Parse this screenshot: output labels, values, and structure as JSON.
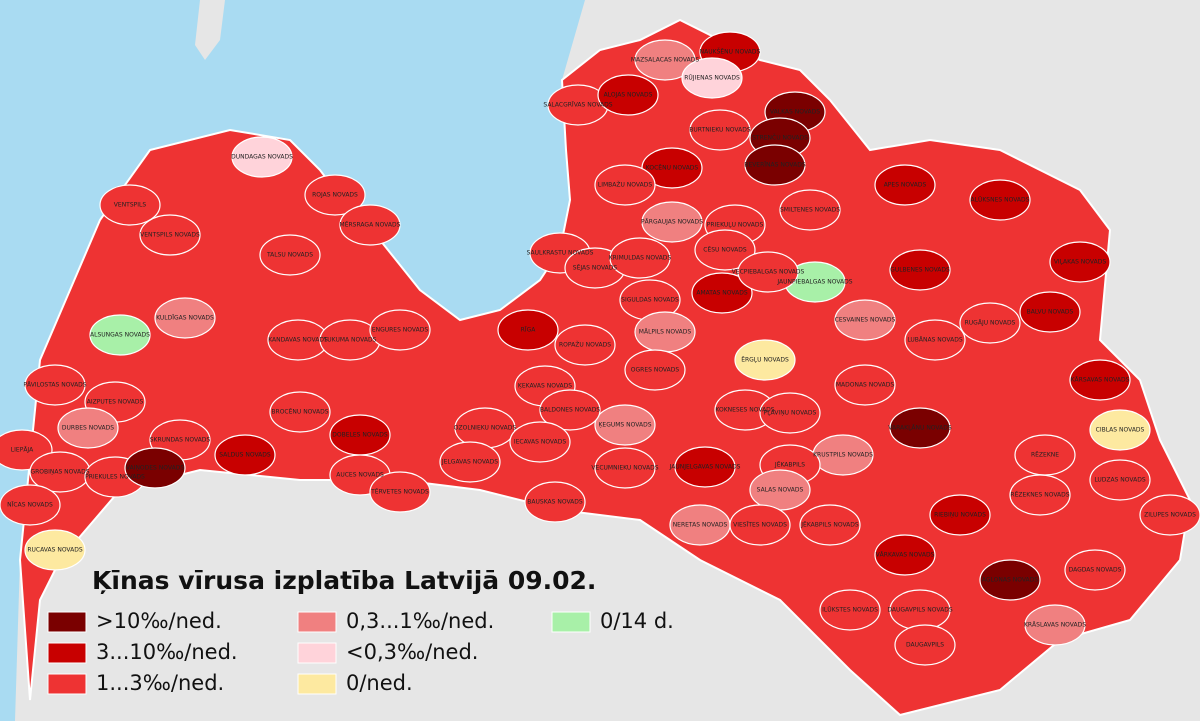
{
  "map": {
    "title": "Ķīnas vīrusa izplatība Latvijā 09.02.",
    "legend": [
      {
        "label": ">10‰/ned.",
        "color": "#7a0000"
      },
      {
        "label": "3...10‰/ned.",
        "color": "#c80000"
      },
      {
        "label": "1...3‰/ned.",
        "color": "#ee3333"
      },
      {
        "label": "0,3...1‰/ned.",
        "color": "#f08080"
      },
      {
        "label": "<0,3‰/ned.",
        "color": "#ffd3da"
      },
      {
        "label": "0/ned.",
        "color": "#fde9a0"
      },
      {
        "label": "0/14 d.",
        "color": "#a8f0a8"
      }
    ],
    "regions": [
      {
        "name": "MAZSALACAS NOVADS",
        "color": "#f08080"
      },
      {
        "name": "NAUKŠĒNU NOVADS",
        "color": "#c80000"
      },
      {
        "name": "RŪJIENAS NOVADS",
        "color": "#ffd3da"
      },
      {
        "name": "VALKAS NOVADS",
        "color": "#7a0000"
      },
      {
        "name": "STRENČU NOVADS",
        "color": "#7a0000"
      },
      {
        "name": "SALACGRĪVAS NOVADS",
        "color": "#ee3333"
      },
      {
        "name": "ALOJAS NOVADS",
        "color": "#c80000"
      },
      {
        "name": "BURTNIEKU NOVADS",
        "color": "#ee3333"
      },
      {
        "name": "KOCĒNU NOVADS",
        "color": "#c80000"
      },
      {
        "name": "BEVERĪNAS NOVADS",
        "color": "#7a0000"
      },
      {
        "name": "DUNDAGAS NOVADS",
        "color": "#ffd3da"
      },
      {
        "name": "ROJAS NOVADS",
        "color": "#ee3333"
      },
      {
        "name": "MĒRSRAGA NOVADS",
        "color": "#ee3333"
      },
      {
        "name": "VENTSPILS",
        "color": "#ee3333"
      },
      {
        "name": "VENTSPILS NOVADS",
        "color": "#ee3333"
      },
      {
        "name": "TALSU NOVADS",
        "color": "#ee3333"
      },
      {
        "name": "LIMBAŽU NOVADS",
        "color": "#ee3333"
      },
      {
        "name": "PĀRGAUJAS NOVADS",
        "color": "#f08080"
      },
      {
        "name": "SMILTENES NOVADS",
        "color": "#ee3333"
      },
      {
        "name": "APES NOVADS",
        "color": "#c80000"
      },
      {
        "name": "ALŪKSNES NOVADS",
        "color": "#c80000"
      },
      {
        "name": "PRIEKUĻU NOVADS",
        "color": "#ee3333"
      },
      {
        "name": "CĒSU NOVADS",
        "color": "#ee3333"
      },
      {
        "name": "JAUNPIEBALGAS NOVADS",
        "color": "#a8f0a8"
      },
      {
        "name": "GULBENES NOVADS",
        "color": "#c80000"
      },
      {
        "name": "VIĻAKAS NOVADS",
        "color": "#c80000"
      },
      {
        "name": "SAULKRASTU NOVADS",
        "color": "#ee3333"
      },
      {
        "name": "SĒJAS NOVADS",
        "color": "#ee3333"
      },
      {
        "name": "KRIMULDAS NOVADS",
        "color": "#ee3333"
      },
      {
        "name": "ALSUNGAS NOVADS",
        "color": "#a8f0a8"
      },
      {
        "name": "KULDĪGAS NOVADS",
        "color": "#f08080"
      },
      {
        "name": "KANDAVAS NOVADS",
        "color": "#ee3333"
      },
      {
        "name": "TUKUMA NOVADS",
        "color": "#ee3333"
      },
      {
        "name": "ENGURES NOVADS",
        "color": "#ee3333"
      },
      {
        "name": "RĪGA",
        "color": "#c80000"
      },
      {
        "name": "SIGULDAS NOVADS",
        "color": "#ee3333"
      },
      {
        "name": "AMATAS NOVADS",
        "color": "#c80000"
      },
      {
        "name": "VECPIEBALGAS NOVADS",
        "color": "#ee3333"
      },
      {
        "name": "CESVAINES NOVADS",
        "color": "#f08080"
      },
      {
        "name": "LUBĀNAS NOVADS",
        "color": "#ee3333"
      },
      {
        "name": "RUGĀJU NOVADS",
        "color": "#ee3333"
      },
      {
        "name": "BALVU NOVADS",
        "color": "#c80000"
      },
      {
        "name": "MĀLPILS NOVADS",
        "color": "#f08080"
      },
      {
        "name": "ROPAŽU NOVADS",
        "color": "#ee3333"
      },
      {
        "name": "ĒRGĻU NOVADS",
        "color": "#fde9a0"
      },
      {
        "name": "PĀVILOSTAS NOVADS",
        "color": "#ee3333"
      },
      {
        "name": "AIZPUTES NOVADS",
        "color": "#ee3333"
      },
      {
        "name": "DURBES NOVADS",
        "color": "#f08080"
      },
      {
        "name": "SKRUNDAS NOVADS",
        "color": "#ee3333"
      },
      {
        "name": "SALDUS NOVADS",
        "color": "#c80000"
      },
      {
        "name": "BROCĒNU NOVADS",
        "color": "#ee3333"
      },
      {
        "name": "DOBELES NOVADS",
        "color": "#c80000"
      },
      {
        "name": "OGRES NOVADS",
        "color": "#ee3333"
      },
      {
        "name": "MADONAS NOVADS",
        "color": "#ee3333"
      },
      {
        "name": "KĀRSAVAS NOVADS",
        "color": "#c80000"
      },
      {
        "name": "CIBLAS NOVADS",
        "color": "#fde9a0"
      },
      {
        "name": "KOKNESES NOVADS",
        "color": "#ee3333"
      },
      {
        "name": "PĻAVIŅU NOVADS",
        "color": "#ee3333"
      },
      {
        "name": "ĶEGUMS NOVADS",
        "color": "#f08080"
      },
      {
        "name": "ĶEKAVAS NOVADS",
        "color": "#ee3333"
      },
      {
        "name": "BALDONES NOVADS",
        "color": "#ee3333"
      },
      {
        "name": "OZOLNIEKU NOVADS",
        "color": "#ee3333"
      },
      {
        "name": "IECAVAS NOVADS",
        "color": "#ee3333"
      },
      {
        "name": "VARAKĻĀNU NOVADS",
        "color": "#7a0000"
      },
      {
        "name": "KRUSTPILS NOVADS",
        "color": "#f08080"
      },
      {
        "name": "RĒZEKNE",
        "color": "#ee3333"
      },
      {
        "name": "LIEPĀJA",
        "color": "#ee3333"
      },
      {
        "name": "GROBIŅAS NOVADS",
        "color": "#ee3333"
      },
      {
        "name": "PRIEKULES NOVADS",
        "color": "#ee3333"
      },
      {
        "name": "VAIŅODES NOVADS",
        "color": "#7a0000"
      },
      {
        "name": "AUCES NOVADS",
        "color": "#ee3333"
      },
      {
        "name": "TĒRVETES NOVADS",
        "color": "#ee3333"
      },
      {
        "name": "JELGAVAS NOVADS",
        "color": "#ee3333"
      },
      {
        "name": "VECUMNIEKU NOVADS",
        "color": "#ee3333"
      },
      {
        "name": "JAUNJELGAVAS NOVADS",
        "color": "#c80000"
      },
      {
        "name": "JĒKABPILS",
        "color": "#ee3333"
      },
      {
        "name": "SALAS NOVADS",
        "color": "#f08080"
      },
      {
        "name": "RĒZEKNES NOVADS",
        "color": "#ee3333"
      },
      {
        "name": "LUDZAS NOVADS",
        "color": "#ee3333"
      },
      {
        "name": "BAUSKAS NOVADS",
        "color": "#ee3333"
      },
      {
        "name": "NĪCAS NOVADS",
        "color": "#ee3333"
      },
      {
        "name": "RUCAVAS NOVADS",
        "color": "#fde9a0"
      },
      {
        "name": "NERETAS NOVADS",
        "color": "#f08080"
      },
      {
        "name": "VIESĪTES NOVADS",
        "color": "#ee3333"
      },
      {
        "name": "JĒKABPILS NOVADS",
        "color": "#ee3333"
      },
      {
        "name": "RIEBIŅU NOVADS",
        "color": "#c80000"
      },
      {
        "name": "ZILUPES NOVADS",
        "color": "#ee3333"
      },
      {
        "name": "VĀRKAVAS NOVADS",
        "color": "#c80000"
      },
      {
        "name": "AGLONAS NOVADS",
        "color": "#7a0000"
      },
      {
        "name": "DAGDAS NOVADS",
        "color": "#ee3333"
      },
      {
        "name": "ILŪKSTES NOVADS",
        "color": "#ee3333"
      },
      {
        "name": "DAUGAVPILS NOVADS",
        "color": "#ee3333"
      },
      {
        "name": "KRĀSLAVAS NOVADS",
        "color": "#f08080"
      },
      {
        "name": "DAUGAVPILS",
        "color": "#ee3333"
      }
    ]
  }
}
